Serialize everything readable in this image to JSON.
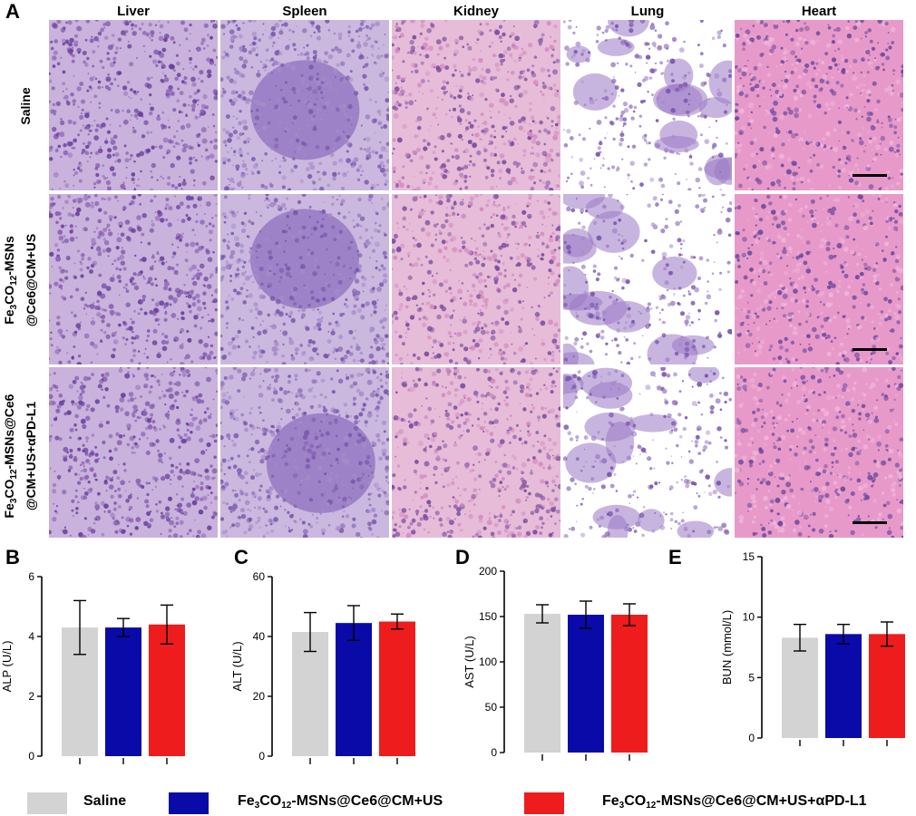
{
  "panelA": {
    "letter": "A",
    "columns": [
      "Liver",
      "Spleen",
      "Kidney",
      "Lung",
      "Heart"
    ],
    "rows": [
      {
        "line1": "Saline",
        "line2": ""
      },
      {
        "line1": "Fe3CO12-MSNs",
        "line2": "@Ce6@CM+US"
      },
      {
        "line1": "Fe3CO12-MSNs@Ce6",
        "line2": "@CM+US+αPD-L1"
      }
    ]
  },
  "colors": {
    "saline": "#d3d3d3",
    "group2": "#0a0aa8",
    "group3": "#ee1c1c"
  },
  "legend": [
    {
      "label": "Saline",
      "color": "#d3d3d3"
    },
    {
      "label_pre": "Fe",
      "sub1": "3",
      "label_mid": "CO",
      "sub2": "12",
      "label_post": "-MSNs@Ce6@CM+US",
      "color": "#0a0aa8"
    },
    {
      "label_pre": "Fe",
      "sub1": "3",
      "label_mid": "CO",
      "sub2": "12",
      "label_post": "-MSNs@Ce6@CM+US+αPD-L1",
      "color": "#ee1c1c"
    }
  ],
  "chart_data": [
    {
      "panel": "B",
      "type": "bar",
      "ylabel": "ALP (U/L)",
      "ylim": [
        0,
        6
      ],
      "yticks": [
        0,
        2,
        4,
        6
      ],
      "categories": [
        "Saline",
        "Fe3CO12-MSNs@Ce6@CM+US",
        "Fe3CO12-MSNs@Ce6@CM+US+αPD-L1"
      ],
      "values": [
        4.3,
        4.3,
        4.4
      ],
      "errors": [
        0.9,
        0.3,
        0.65
      ]
    },
    {
      "panel": "C",
      "type": "bar",
      "ylabel": "ALT (U/L)",
      "ylim": [
        0,
        60
      ],
      "yticks": [
        0,
        20,
        40,
        60
      ],
      "categories": [
        "Saline",
        "Fe3CO12-MSNs@Ce6@CM+US",
        "Fe3CO12-MSNs@Ce6@CM+US+αPD-L1"
      ],
      "values": [
        41.5,
        44.5,
        45
      ],
      "errors": [
        6.5,
        5.8,
        2.5
      ]
    },
    {
      "panel": "D",
      "type": "bar",
      "ylabel": "AST (U/L)",
      "ylim": [
        0,
        200
      ],
      "yticks": [
        0,
        50,
        100,
        150,
        200
      ],
      "categories": [
        "Saline",
        "Fe3CO12-MSNs@Ce6@CM+US",
        "Fe3CO12-MSNs@Ce6@CM+US+αPD-L1"
      ],
      "values": [
        153,
        152,
        152
      ],
      "errors": [
        10,
        15,
        12
      ]
    },
    {
      "panel": "E",
      "type": "bar",
      "ylabel": "BUN (mmol/L)",
      "ylim": [
        0,
        15
      ],
      "yticks": [
        0,
        5,
        10,
        15
      ],
      "categories": [
        "Saline",
        "Fe3CO12-MSNs@Ce6@CM+US",
        "Fe3CO12-MSNs@Ce6@CM+US+αPD-L1"
      ],
      "values": [
        8.3,
        8.6,
        8.6
      ],
      "errors": [
        1.1,
        0.8,
        1.0
      ]
    }
  ]
}
